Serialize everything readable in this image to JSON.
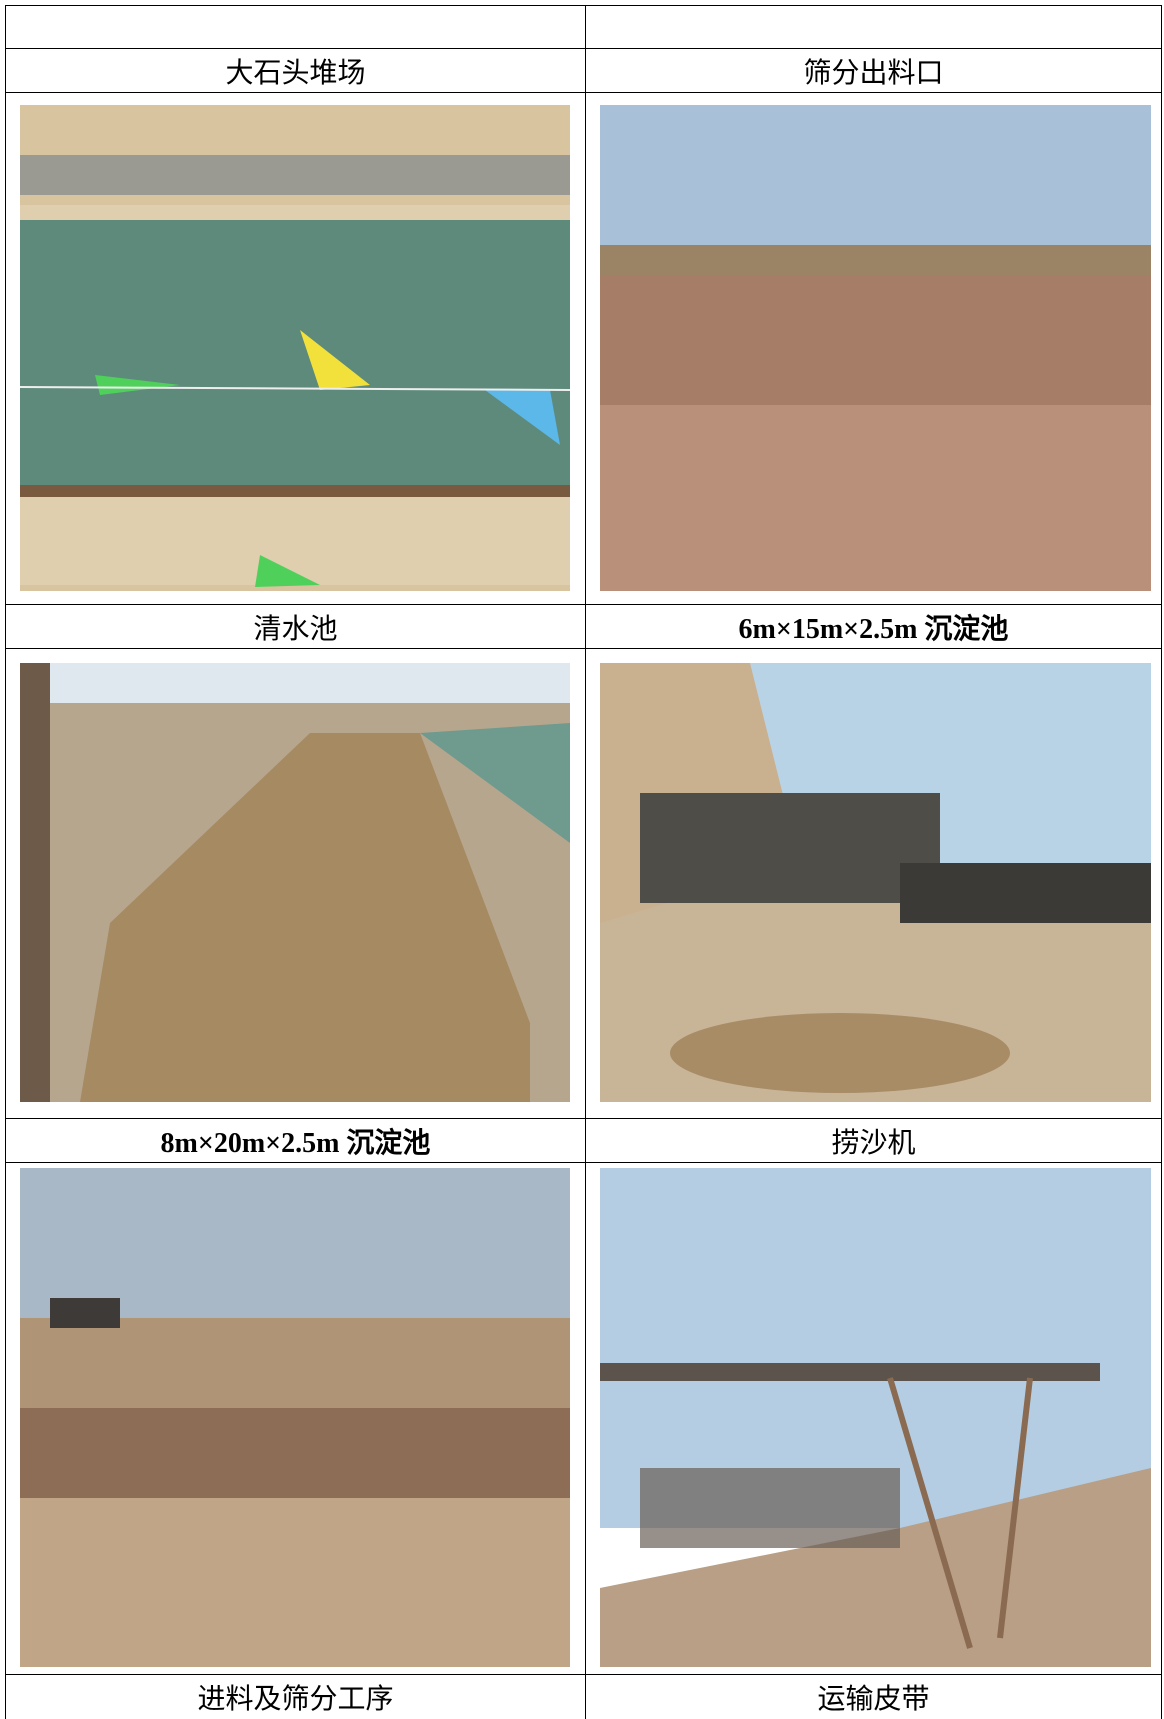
{
  "table": {
    "rows": [
      [
        "大石头堆场",
        "筛分出料口"
      ],
      [
        "清水池",
        "6m×15m×2.5m 沉淀池"
      ],
      [
        "8m×20m×2.5m 沉淀池",
        "捞沙机"
      ],
      [
        "进料及筛分工序",
        "运输皮带"
      ]
    ]
  }
}
